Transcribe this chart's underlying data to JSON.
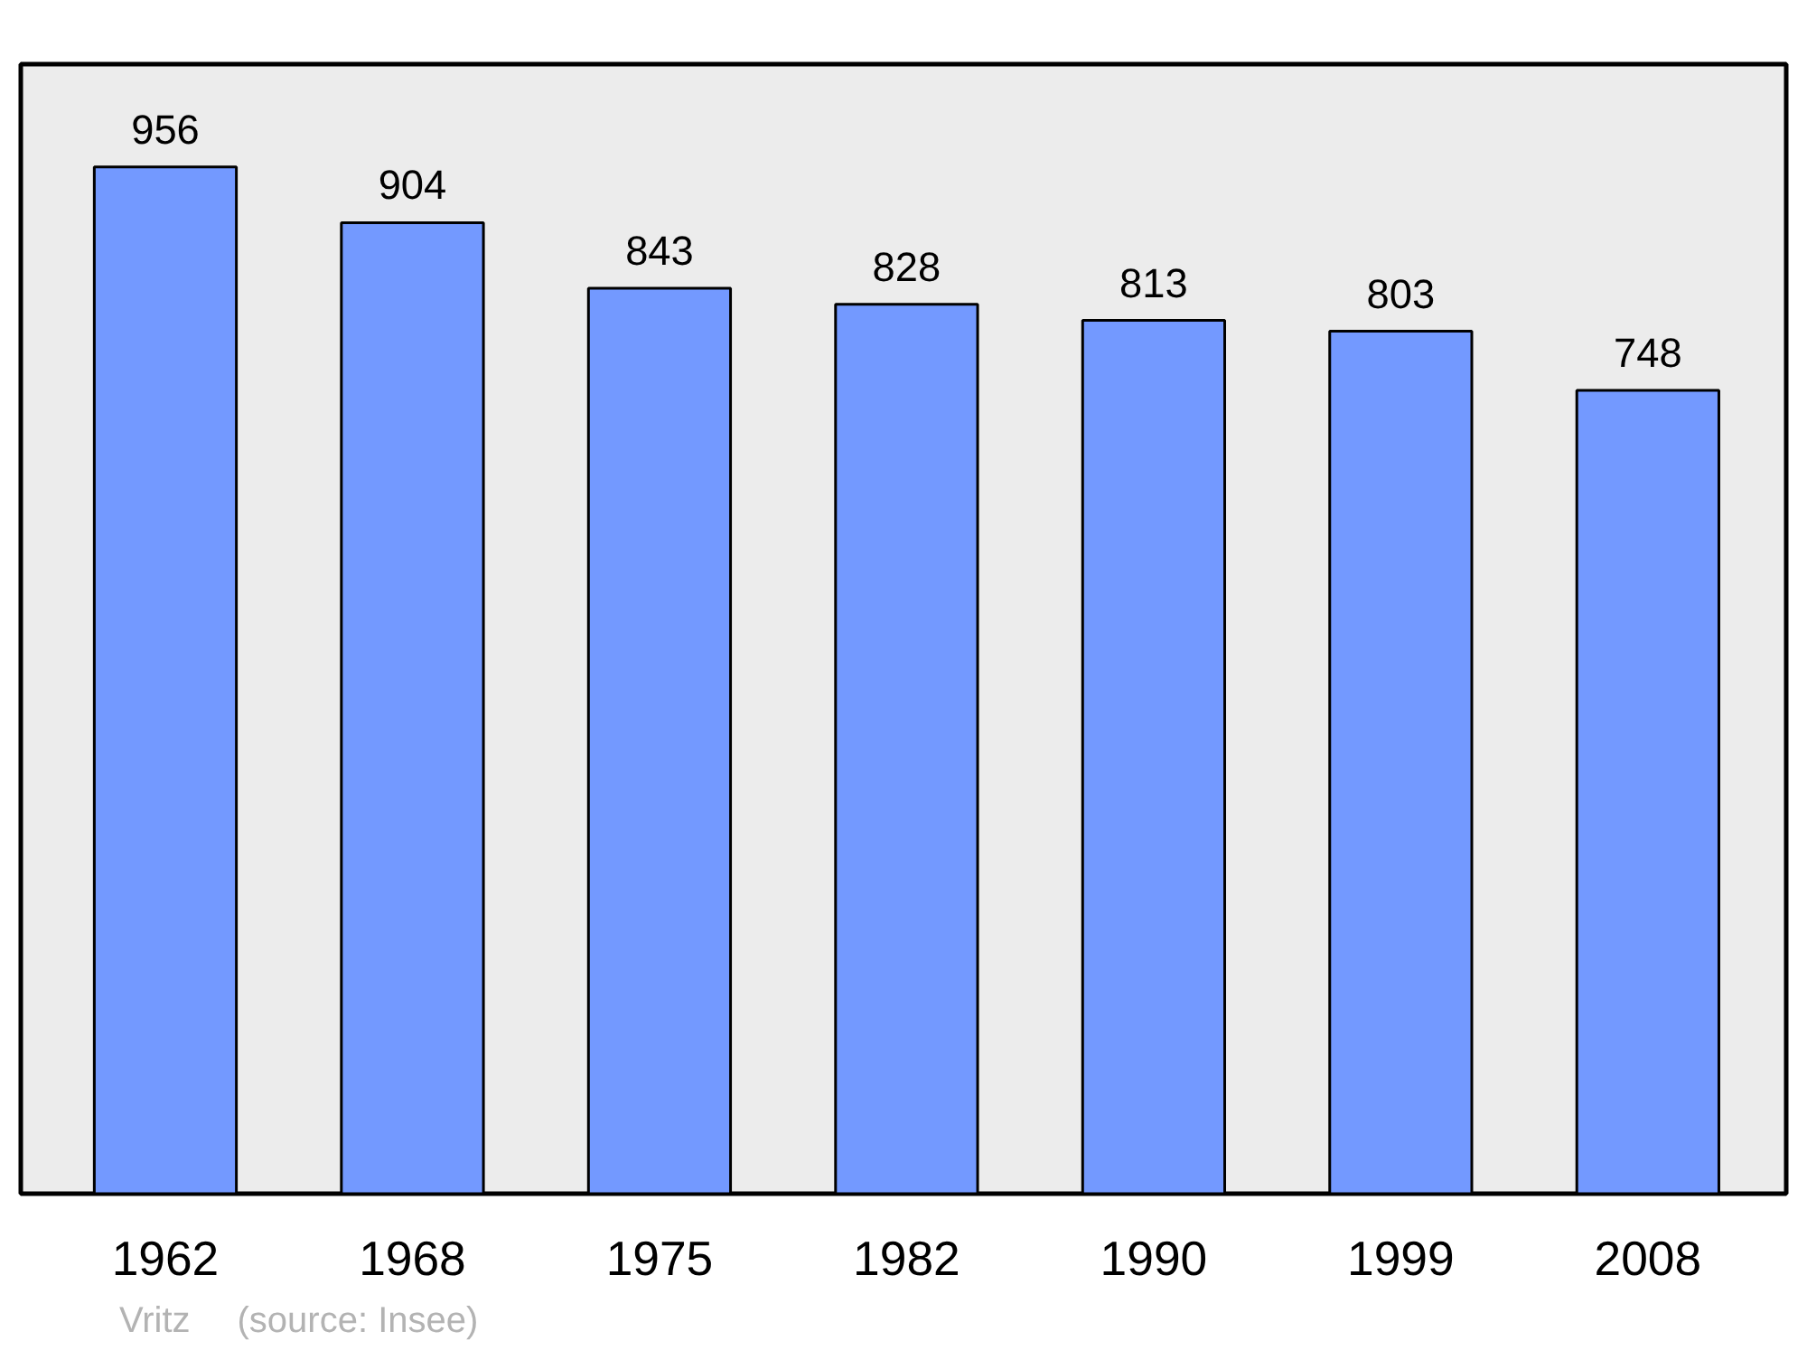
{
  "chart_data": {
    "type": "bar",
    "categories": [
      "1962",
      "1968",
      "1975",
      "1982",
      "1990",
      "1999",
      "2008"
    ],
    "values": [
      956,
      904,
      843,
      828,
      813,
      803,
      748
    ],
    "color": "#7399ff",
    "data_labels": true,
    "annotations": [
      "Vritz",
      "(source: Insee)"
    ]
  }
}
